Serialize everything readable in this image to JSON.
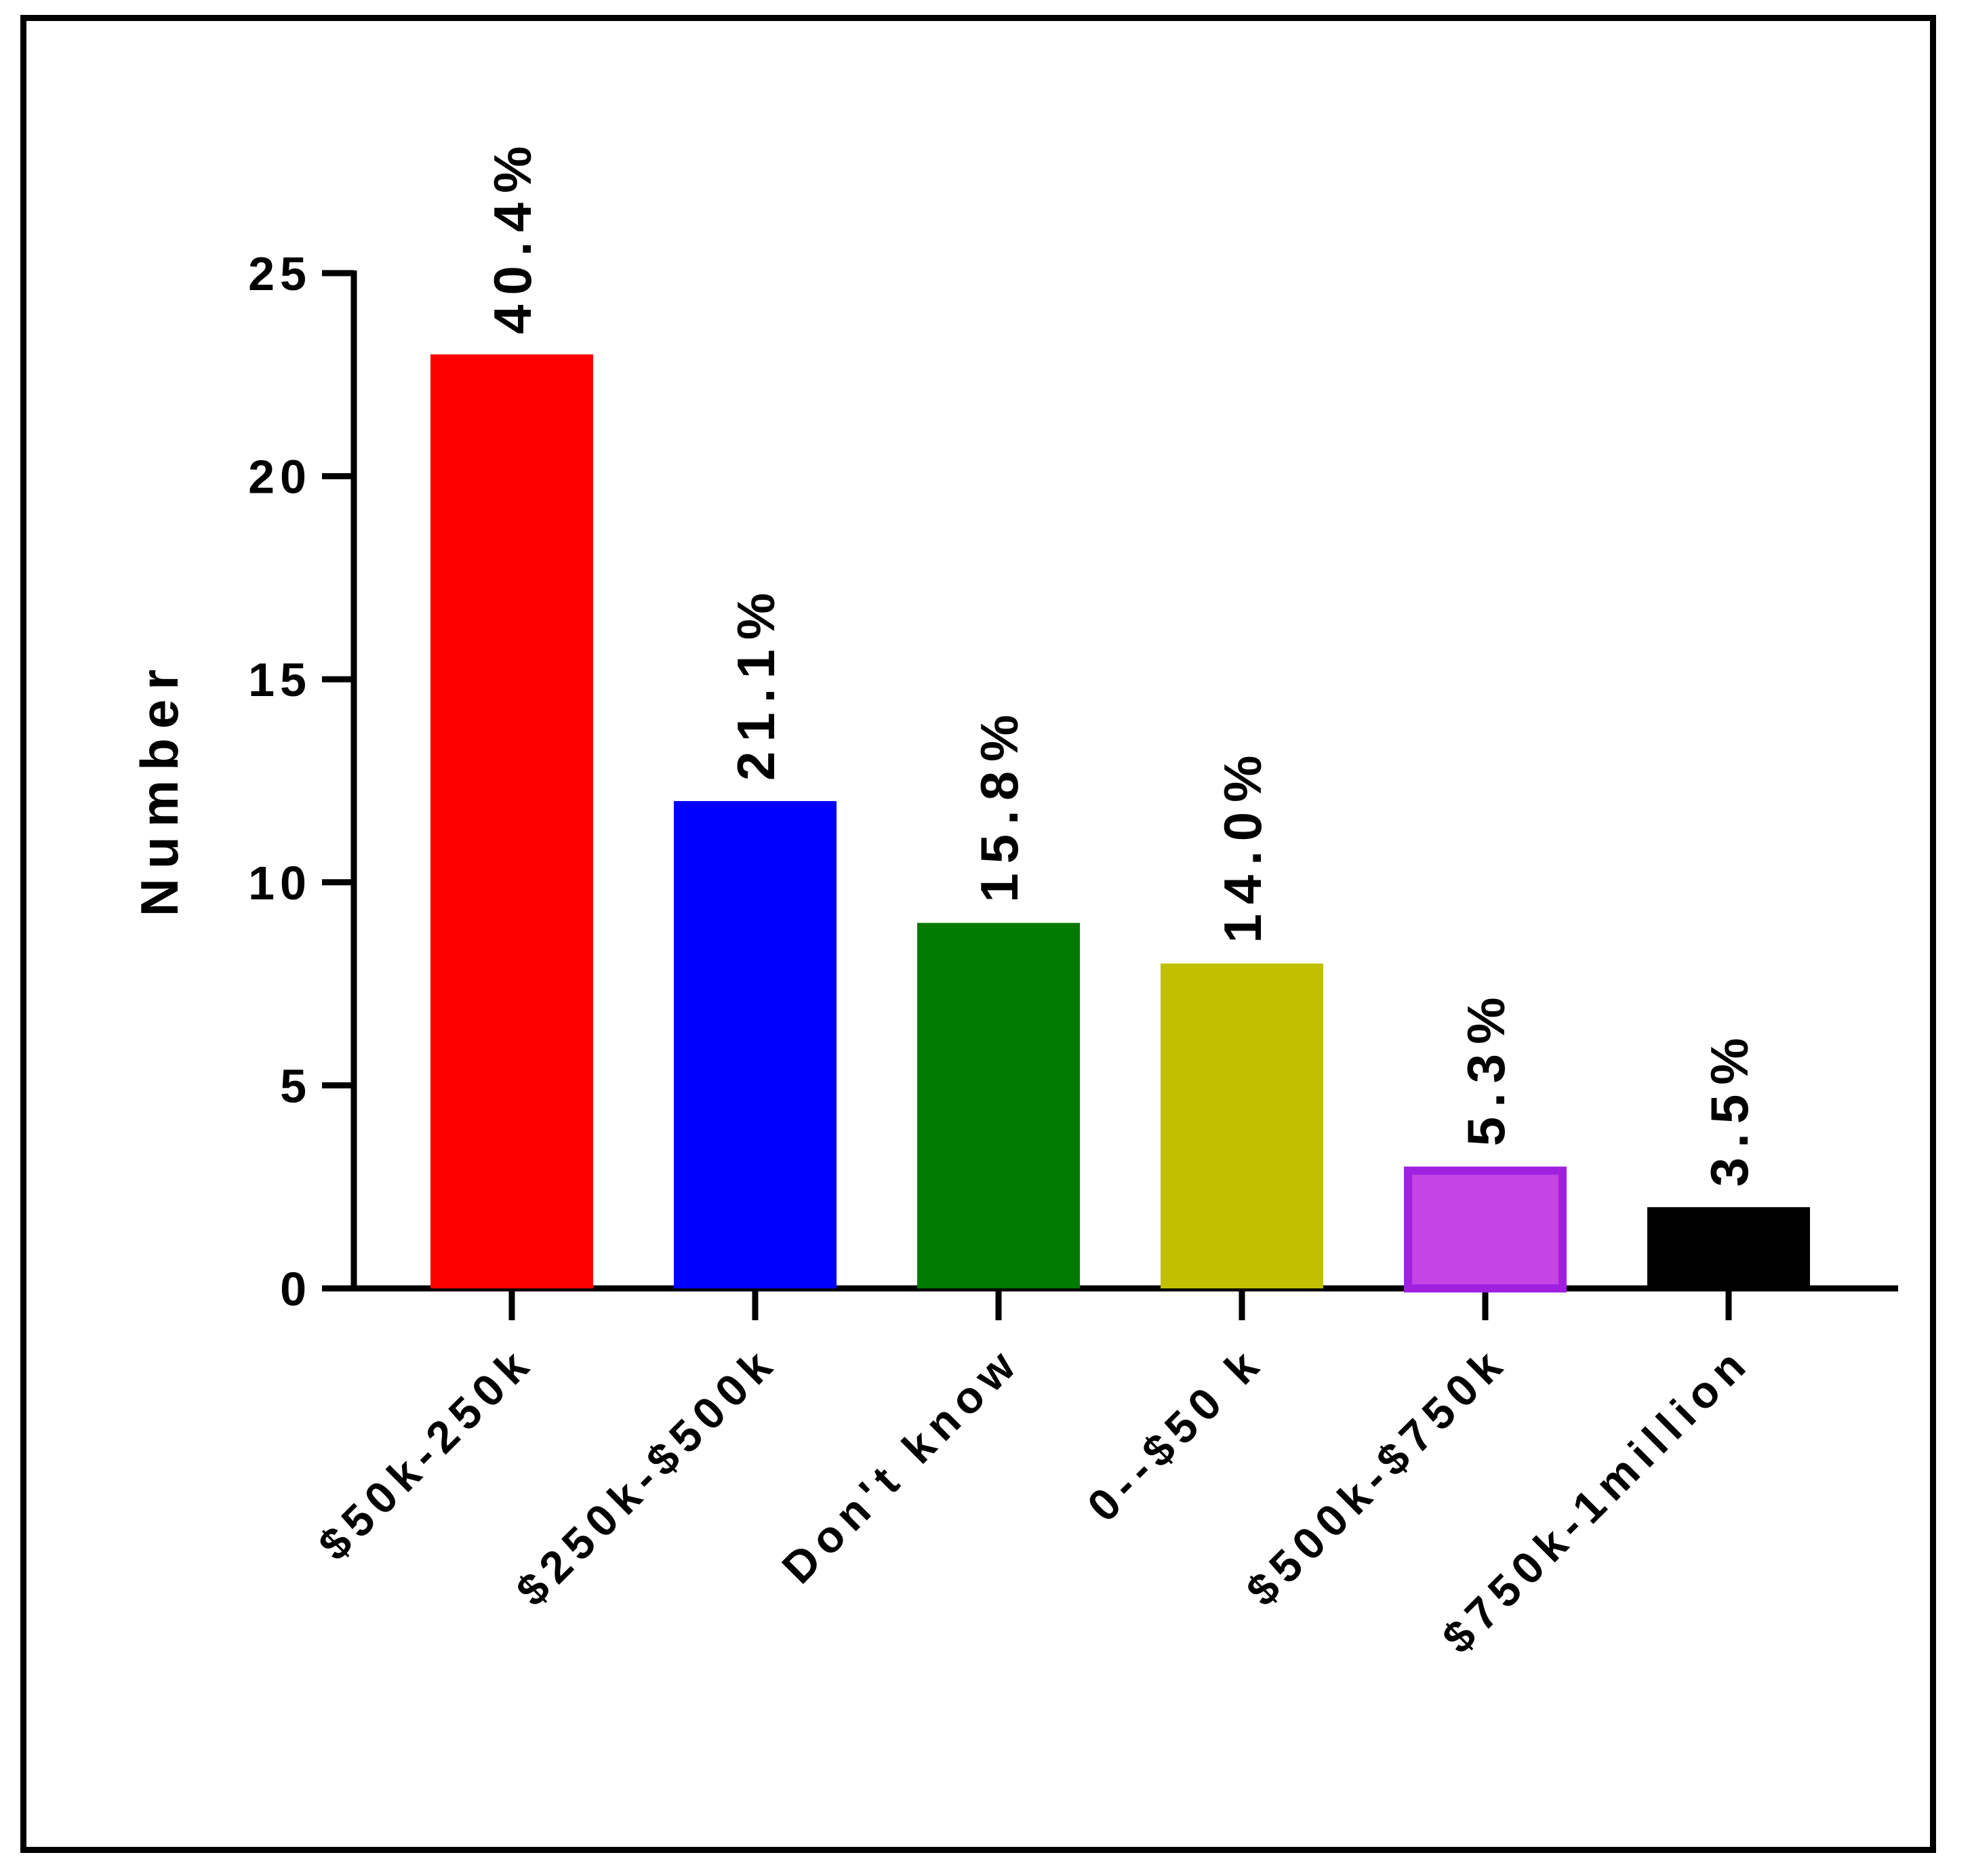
{
  "chart_data": {
    "type": "bar",
    "title": "",
    "xlabel": "",
    "ylabel": "Number",
    "ylim": [
      0,
      25
    ],
    "yticks": [
      0,
      5,
      10,
      15,
      20,
      25
    ],
    "grid": false,
    "categories": [
      "$50k-250k",
      "$250k-$500k",
      "Don't know",
      "0--$50 k",
      "$500k-$750k",
      "$750k-1million"
    ],
    "values": [
      23,
      12,
      9,
      8,
      3,
      2
    ],
    "data_labels": [
      "40.4%",
      "21.1%",
      "15.8%",
      "14.0%",
      "5.3%",
      "3.5%"
    ],
    "colors": [
      "#ff0000",
      "#0000ff",
      "#007a00",
      "#c0c000",
      "#c444e4",
      "#000000"
    ]
  }
}
